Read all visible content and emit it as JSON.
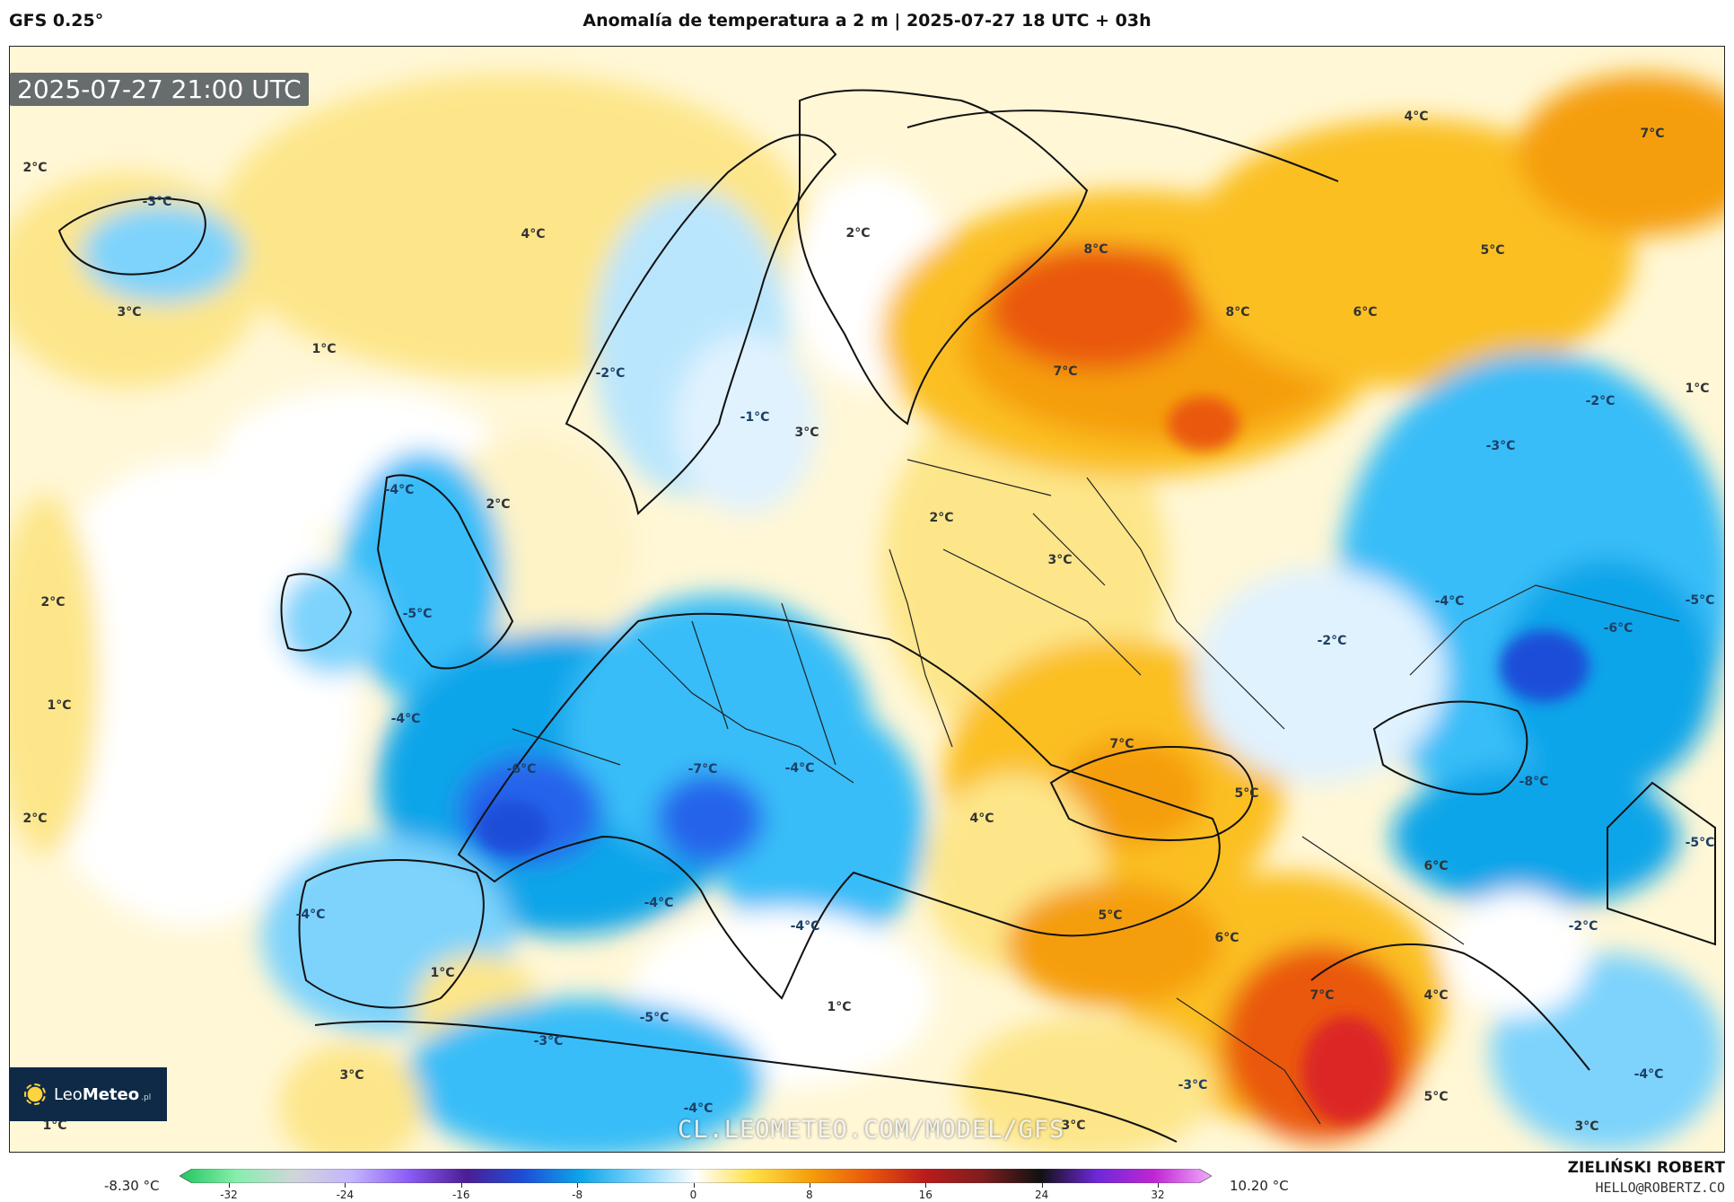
{
  "header": {
    "model": "GFS 0.25°",
    "title": "Anomalía de temperatura a 2 m | 2025-07-27 18 UTC + 03h"
  },
  "map": {
    "timestamp": "2025-07-27 21:00 UTC",
    "watermark": "CL.LEOMETEO.COM/MODEL/GFS",
    "colors": {
      "water_base": "#fffbe6",
      "warm_light": "#fde68a",
      "warm": "#fbbf24",
      "warm_strong": "#f59e0b",
      "hot": "#ea580c",
      "very_hot": "#dc2626",
      "cool_light": "#e0f2fe",
      "cool": "#7dd3fc",
      "cold": "#38bdf8",
      "very_cold": "#0ea5e9",
      "coldest": "#2563eb",
      "coast": "#111111"
    },
    "labels": [
      "2°C",
      "4°C",
      "2°C",
      "3°C",
      "1°C",
      "-3°C",
      "-2°C",
      "-1°C",
      "3°C",
      "8°C",
      "8°C",
      "6°C",
      "5°C",
      "7°C",
      "7°C",
      "4°C",
      "-2°C",
      "1°C",
      "-3°C",
      "-4°C",
      "2°C",
      "2°C",
      "3°C",
      "-4°C",
      "-5°C",
      "-2°C",
      "-6°C",
      "-5°C",
      "2°C",
      "1°C",
      "-4°C",
      "-6°C",
      "-7°C",
      "-4°C",
      "7°C",
      "5°C",
      "4°C",
      "-8°C",
      "2°C",
      "-5°C",
      "6°C",
      "-4°C",
      "-4°C",
      "-4°C",
      "5°C",
      "6°C",
      "-2°C",
      "1°C",
      "7°C",
      "4°C",
      "1°C",
      "-5°C",
      "-3°C",
      "3°C",
      "-4°C",
      "-4°C",
      "5°C",
      "-3°C",
      "1°C",
      "3°C",
      "3°C"
    ]
  },
  "logo": {
    "brand": "Leo",
    "brand_bold": "Meteo",
    "suffix": ".pl"
  },
  "colorbar": {
    "min_label": "-8.30 °C",
    "max_label": "10.20 °C",
    "ticks": [
      "-32",
      "-24",
      "-16",
      "-8",
      "0",
      "8",
      "16",
      "24",
      "32"
    ],
    "stops": [
      "#22c55e",
      "#86efac",
      "#d1d5db",
      "#c4b5fd",
      "#8b5cf6",
      "#4c1d95",
      "#1d4ed8",
      "#0ea5e9",
      "#7dd3fc",
      "#ffffff",
      "#fde047",
      "#f59e0b",
      "#ea580c",
      "#b91c1c",
      "#7f1d1d",
      "#111111",
      "#6d28d9",
      "#c026d3",
      "#f0abfc"
    ]
  },
  "credit": {
    "name": "ZIELIŃSKI ROBERT",
    "email": "HELLO@ROBERTZ.CO"
  }
}
